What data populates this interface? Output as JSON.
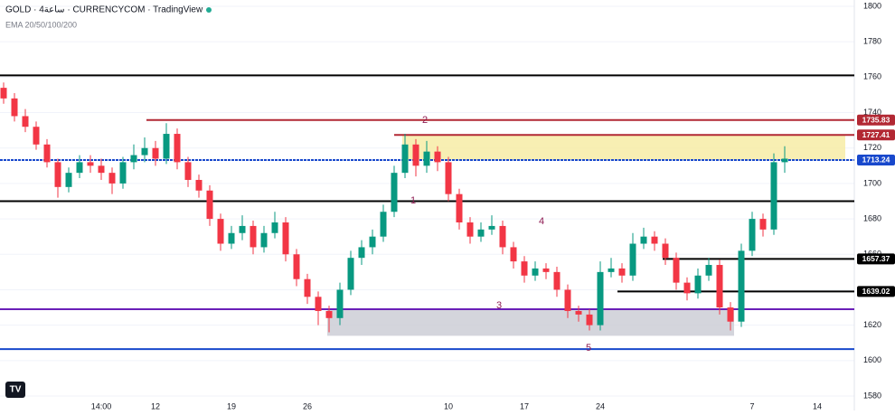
{
  "chart_data": {
    "type": "candlestick",
    "title": "GOLD · 4ساعة · CURRENCYCOM · TradingView",
    "indicator": "EMA 20/50/100/200",
    "ylim": [
      1580,
      1800
    ],
    "yticks": [
      1580,
      1600,
      1620,
      1640,
      1660,
      1680,
      1700,
      1720,
      1740,
      1760,
      1780,
      1800
    ],
    "grid": true,
    "up_color": "#089981",
    "down_color": "#f23645",
    "categories": [
      null,
      null,
      null,
      null,
      null,
      null,
      null,
      null,
      null,
      "14:00",
      null,
      null,
      null,
      null,
      "12",
      null,
      null,
      null,
      null,
      null,
      null,
      "19",
      null,
      null,
      null,
      null,
      null,
      null,
      "26",
      null,
      null,
      null,
      null,
      null,
      null,
      null,
      null,
      null,
      null,
      null,
      null,
      "10",
      null,
      null,
      null,
      null,
      null,
      null,
      "17",
      null,
      null,
      null,
      null,
      null,
      null,
      "24",
      null,
      null,
      null,
      null,
      null,
      null,
      null,
      null,
      null,
      null,
      null,
      null,
      null,
      "7",
      null,
      null,
      null,
      null,
      null,
      "14"
    ],
    "candles": [
      [
        1754,
        1757,
        1745,
        1748
      ],
      [
        1748,
        1751,
        1735,
        1738
      ],
      [
        1738,
        1742,
        1729,
        1732
      ],
      [
        1732,
        1735,
        1719,
        1722
      ],
      [
        1722,
        1725,
        1709,
        1712
      ],
      [
        1712,
        1714,
        1692,
        1698
      ],
      [
        1698,
        1709,
        1695,
        1706
      ],
      [
        1706,
        1716,
        1703,
        1712
      ],
      [
        1712,
        1716,
        1706,
        1710
      ],
      [
        1710,
        1714,
        1702,
        1706
      ],
      [
        1706,
        1709,
        1694,
        1700
      ],
      [
        1700,
        1715,
        1697,
        1712
      ],
      [
        1712,
        1722,
        1708,
        1716
      ],
      [
        1716,
        1726,
        1712,
        1720
      ],
      [
        1720,
        1724,
        1710,
        1714
      ],
      [
        1714,
        1734,
        1711,
        1728
      ],
      [
        1728,
        1731,
        1708,
        1712
      ],
      [
        1712,
        1715,
        1698,
        1702
      ],
      [
        1702,
        1705,
        1692,
        1696
      ],
      [
        1696,
        1699,
        1676,
        1680
      ],
      [
        1680,
        1683,
        1662,
        1666
      ],
      [
        1666,
        1676,
        1663,
        1672
      ],
      [
        1672,
        1682,
        1668,
        1676
      ],
      [
        1676,
        1679,
        1660,
        1664
      ],
      [
        1664,
        1676,
        1661,
        1672
      ],
      [
        1672,
        1684,
        1669,
        1678
      ],
      [
        1678,
        1681,
        1656,
        1660
      ],
      [
        1660,
        1663,
        1642,
        1646
      ],
      [
        1646,
        1649,
        1632,
        1636
      ],
      [
        1636,
        1639,
        1620,
        1628
      ],
      [
        1628,
        1631,
        1616,
        1624
      ],
      [
        1624,
        1644,
        1620,
        1640
      ],
      [
        1640,
        1662,
        1637,
        1658
      ],
      [
        1658,
        1668,
        1654,
        1664
      ],
      [
        1664,
        1674,
        1660,
        1670
      ],
      [
        1670,
        1688,
        1667,
        1684
      ],
      [
        1684,
        1710,
        1681,
        1706
      ],
      [
        1706,
        1728,
        1703,
        1722
      ],
      [
        1722,
        1725,
        1704,
        1710
      ],
      [
        1710,
        1724,
        1706,
        1718
      ],
      [
        1718,
        1721,
        1707,
        1712
      ],
      [
        1712,
        1715,
        1690,
        1694
      ],
      [
        1694,
        1697,
        1674,
        1678
      ],
      [
        1678,
        1681,
        1666,
        1670
      ],
      [
        1670,
        1678,
        1667,
        1674
      ],
      [
        1674,
        1682,
        1671,
        1676
      ],
      [
        1676,
        1679,
        1660,
        1664
      ],
      [
        1664,
        1667,
        1652,
        1656
      ],
      [
        1656,
        1659,
        1644,
        1648
      ],
      [
        1648,
        1656,
        1645,
        1652
      ],
      [
        1652,
        1655,
        1646,
        1650
      ],
      [
        1650,
        1653,
        1636,
        1640
      ],
      [
        1640,
        1643,
        1624,
        1628
      ],
      [
        1628,
        1631,
        1622,
        1626
      ],
      [
        1626,
        1629,
        1617,
        1620
      ],
      [
        1620,
        1656,
        1617,
        1650
      ],
      [
        1650,
        1658,
        1647,
        1652
      ],
      [
        1652,
        1655,
        1644,
        1648
      ],
      [
        1648,
        1672,
        1645,
        1666
      ],
      [
        1666,
        1675,
        1663,
        1670
      ],
      [
        1670,
        1673,
        1662,
        1666
      ],
      [
        1666,
        1669,
        1654,
        1658
      ],
      [
        1658,
        1661,
        1640,
        1644
      ],
      [
        1644,
        1647,
        1634,
        1638
      ],
      [
        1638,
        1652,
        1635,
        1648
      ],
      [
        1648,
        1658,
        1645,
        1654
      ],
      [
        1654,
        1657,
        1626,
        1630
      ],
      [
        1630,
        1633,
        1617,
        1622
      ],
      [
        1622,
        1666,
        1619,
        1662
      ],
      [
        1662,
        1684,
        1659,
        1680
      ],
      [
        1680,
        1683,
        1670,
        1674
      ],
      [
        1674,
        1717,
        1671,
        1712
      ],
      [
        1712,
        1721,
        1706,
        1714
      ],
      null,
      null,
      null
    ],
    "levels": [
      {
        "value": 1761,
        "color": "#000000"
      },
      {
        "value": 1735.83,
        "color": "#b22833",
        "tag": true
      },
      {
        "value": 1727.41,
        "color": "#b22833",
        "tag": true
      },
      {
        "value": 1713.24,
        "color": "#1848cc",
        "tag": true
      },
      {
        "value": 1690,
        "color": "#000000"
      },
      {
        "value": 1657.37,
        "color": "#000000",
        "tag": true
      },
      {
        "value": 1639.02,
        "color": "#000000",
        "tag": true
      },
      {
        "value": 1629,
        "color": "#6a1fb8"
      },
      {
        "value": 1606.5,
        "color": "#1848cc"
      }
    ],
    "zones": [
      {
        "from": 1713.24,
        "to": 1727.41,
        "color": "#f6eba0"
      },
      {
        "from": 1614,
        "to": 1629,
        "color": "#c9cad3"
      }
    ],
    "annotations": [
      "1",
      "2",
      "3",
      "4",
      "5"
    ]
  }
}
